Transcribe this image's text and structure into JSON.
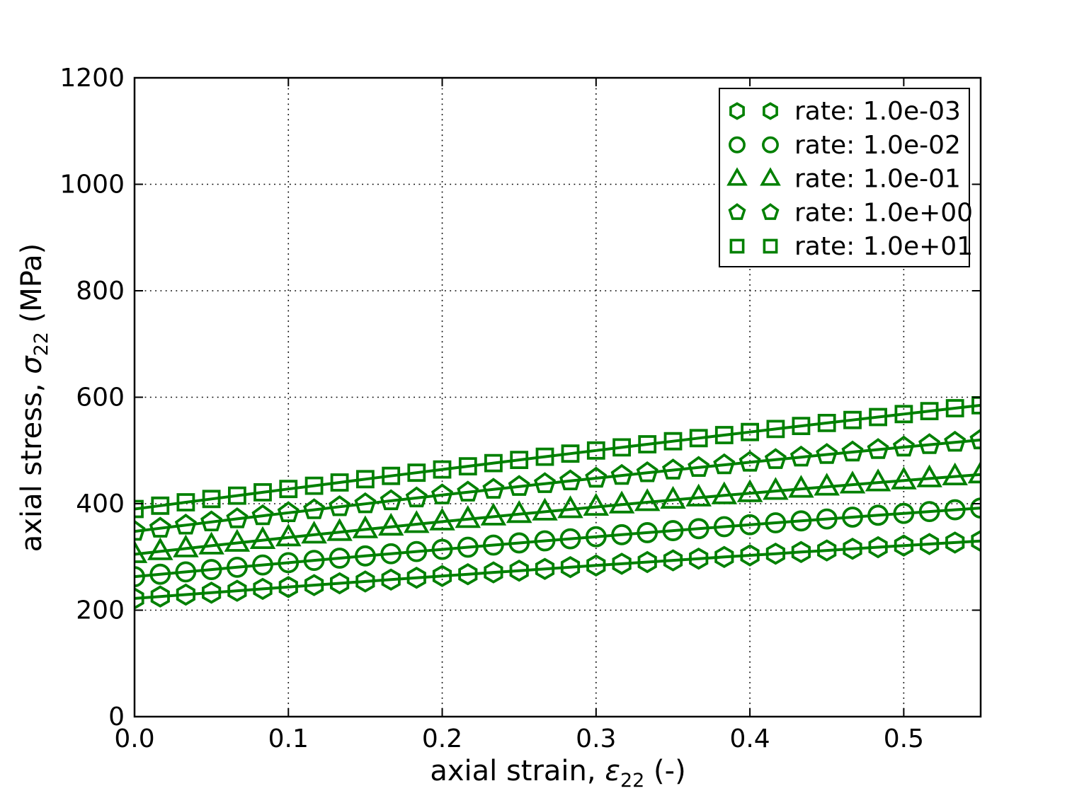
{
  "figure": {
    "background": "#ffffff",
    "axis_color": "#000000",
    "series_color": "#008000",
    "grid_style": "dotted"
  },
  "chart_data": {
    "type": "line",
    "title": "",
    "xlabel": {
      "pre": "axial strain, ",
      "symbol": "ε",
      "subscript": "22",
      "post": " (-)"
    },
    "ylabel": {
      "pre": "axial stress, ",
      "symbol": "σ",
      "subscript": "22",
      "post": " (MPa)"
    },
    "xlim": [
      0,
      0.55
    ],
    "ylim": [
      0,
      1200
    ],
    "xticks": [
      0.0,
      0.1,
      0.2,
      0.3,
      0.4,
      0.5
    ],
    "xtick_labels": [
      "0.0",
      "0.1",
      "0.2",
      "0.3",
      "0.4",
      "0.5"
    ],
    "yticks": [
      0,
      200,
      400,
      600,
      800,
      1000,
      1200
    ],
    "ytick_labels": [
      "0",
      "200",
      "400",
      "600",
      "800",
      "1000",
      "1200"
    ],
    "grid": "on",
    "legend_position": "upper right",
    "x": [
      0.0,
      0.0167,
      0.0333,
      0.05,
      0.0667,
      0.0833,
      0.1,
      0.1167,
      0.1333,
      0.15,
      0.1667,
      0.1833,
      0.2,
      0.2167,
      0.2333,
      0.25,
      0.2667,
      0.2833,
      0.3,
      0.3167,
      0.3333,
      0.35,
      0.3667,
      0.3833,
      0.4,
      0.4167,
      0.4333,
      0.45,
      0.4667,
      0.4833,
      0.5,
      0.5167,
      0.5333,
      0.55
    ],
    "series": [
      {
        "name": "rate: 1.0e-03",
        "marker": "hexagon",
        "y": [
          222.0,
          225.6,
          229.3,
          232.8,
          236.4,
          240.0,
          243.5,
          247.0,
          250.5,
          253.9,
          257.4,
          260.8,
          264.2,
          267.5,
          270.9,
          274.2,
          277.5,
          280.8,
          284.0,
          287.2,
          290.4,
          293.6,
          296.8,
          299.9,
          303.0,
          306.1,
          309.2,
          312.2,
          315.3,
          318.3,
          321.3,
          324.2,
          327.1,
          330.0
        ]
      },
      {
        "name": "rate: 1.0e-02",
        "marker": "circle",
        "y": [
          263.0,
          267.5,
          271.9,
          276.3,
          280.6,
          284.9,
          289.2,
          293.5,
          297.7,
          301.9,
          306.0,
          310.1,
          314.2,
          318.3,
          322.3,
          326.3,
          330.2,
          334.1,
          338.0,
          341.8,
          345.6,
          349.4,
          353.1,
          356.8,
          360.5,
          364.1,
          367.7,
          371.3,
          374.8,
          378.3,
          381.8,
          385.2,
          388.6,
          391.9
        ]
      },
      {
        "name": "rate: 1.0e-01",
        "marker": "triangle",
        "y": [
          305.0,
          310.4,
          315.7,
          321.0,
          326.2,
          331.4,
          336.5,
          341.6,
          346.6,
          351.6,
          356.5,
          361.4,
          366.2,
          370.9,
          375.6,
          380.3,
          384.8,
          389.4,
          393.9,
          398.3,
          402.7,
          407.0,
          411.3,
          415.5,
          419.6,
          423.8,
          427.8,
          431.8,
          435.8,
          439.7,
          443.5,
          447.3,
          451.0,
          454.7
        ]
      },
      {
        "name": "rate: 1.0e+00",
        "marker": "pentagon",
        "y": [
          348.0,
          353.9,
          359.8,
          365.7,
          371.5,
          377.3,
          383.0,
          388.6,
          394.3,
          399.8,
          405.4,
          410.8,
          416.3,
          421.7,
          427.0,
          432.3,
          437.6,
          442.8,
          447.9,
          453.0,
          458.1,
          463.1,
          468.1,
          473.0,
          477.9,
          482.8,
          487.5,
          492.3,
          497.0,
          501.6,
          506.3,
          510.8,
          515.3,
          519.8
        ]
      },
      {
        "name": "rate: 1.0e+01",
        "marker": "square",
        "y": [
          390.0,
          396.3,
          402.6,
          408.9,
          415.2,
          421.4,
          427.6,
          433.8,
          439.9,
          446.1,
          452.2,
          458.2,
          464.3,
          470.3,
          476.3,
          482.2,
          488.2,
          494.1,
          499.9,
          505.8,
          511.6,
          517.4,
          523.2,
          528.9,
          534.6,
          540.3,
          546.0,
          551.6,
          557.2,
          562.8,
          568.4,
          573.9,
          579.4,
          584.9
        ]
      }
    ]
  }
}
